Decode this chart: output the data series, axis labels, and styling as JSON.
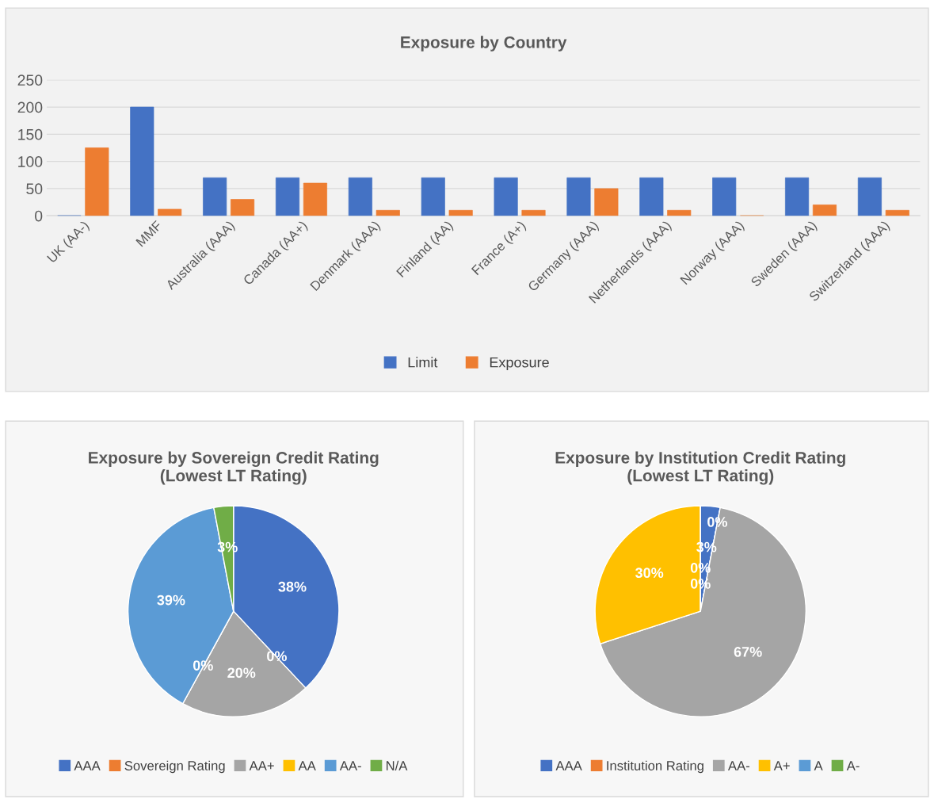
{
  "chart_data": [
    {
      "type": "bar",
      "title": "Exposure by Country",
      "categories": [
        "UK (AA-)",
        "MMF",
        "Australia (AAA)",
        "Canada (AA+)",
        "Denmark (AAA)",
        "Finland (AA)",
        "France (A+)",
        "Germany (AAA)",
        "Netherlands (AAA)",
        "Norway (AAA)",
        "Sweden (AAA)",
        "Switzerland (AAA)"
      ],
      "series": [
        {
          "name": "Limit",
          "color": "#4472c4",
          "values": [
            0,
            200,
            70,
            70,
            70,
            70,
            70,
            70,
            70,
            70,
            70,
            70
          ]
        },
        {
          "name": "Exposure",
          "color": "#ed7d31",
          "values": [
            125,
            12,
            30,
            60,
            10,
            10,
            10,
            50,
            10,
            0,
            20,
            10
          ]
        }
      ],
      "ylim": [
        0,
        250
      ],
      "yticks": [
        0,
        50,
        100,
        150,
        200,
        250
      ],
      "grid": "y",
      "legend": "bottom"
    },
    {
      "type": "pie",
      "title": "Exposure by Sovereign Credit Rating\n(Lowest LT Rating)",
      "categories": [
        "AAA",
        "Sovereign Rating",
        "AA+",
        "AA",
        "AA-",
        "N/A"
      ],
      "values": [
        38,
        0,
        20,
        0,
        39,
        3
      ],
      "colors": [
        "#4472c4",
        "#ed7d31",
        "#a5a5a5",
        "#ffc000",
        "#5b9bd5",
        "#70ad47"
      ],
      "value_labels": [
        "38%",
        "0%",
        "20%",
        "0%",
        "39%",
        "3%"
      ],
      "legend": "bottom"
    },
    {
      "type": "pie",
      "title": "Exposure by Institution Credit Rating\n(Lowest LT Rating)",
      "categories": [
        "AAA",
        "Institution Rating",
        "AA-",
        "A+",
        "A",
        "A-"
      ],
      "values": [
        3,
        0,
        67,
        30,
        0,
        0
      ],
      "colors": [
        "#4472c4",
        "#ed7d31",
        "#a5a5a5",
        "#ffc000",
        "#5b9bd5",
        "#70ad47"
      ],
      "value_labels": [
        "3%",
        "0%",
        "67%",
        "30%",
        "0%",
        "0%"
      ],
      "legend": "bottom"
    }
  ]
}
